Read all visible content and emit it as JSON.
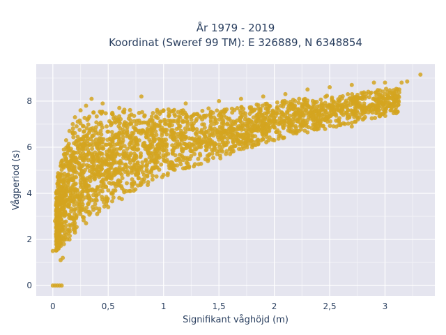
{
  "chart_data": {
    "type": "scatter",
    "title_line1": "År 1979 - 2019",
    "title_line2": "Koordinat (Sweref 99 TM): E 326889, N 6348854",
    "xlabel": "Signifikant våghöjd (m)",
    "ylabel": "Vågperiod (s)",
    "xlim": [
      -0.15,
      3.45
    ],
    "ylim": [
      -0.45,
      9.6
    ],
    "xticks": [
      0,
      0.5,
      1,
      1.5,
      2,
      2.5,
      3
    ],
    "xtick_labels": [
      "0",
      "0,5",
      "1",
      "1,5",
      "2",
      "2,5",
      "3"
    ],
    "yticks": [
      0,
      2,
      4,
      6,
      8
    ],
    "ytick_labels": [
      "0",
      "2",
      "4",
      "6",
      "8"
    ],
    "grid": true,
    "marker_color": "#d4a420",
    "plot_bg": "#e5e5ef",
    "points": [
      [
        0.0,
        0.0
      ],
      [
        0.02,
        0.0
      ],
      [
        0.04,
        0.0
      ],
      [
        0.06,
        0.0
      ],
      [
        0.08,
        0.0
      ],
      [
        0.0,
        1.5
      ],
      [
        0.02,
        2.8
      ],
      [
        0.05,
        1.6
      ],
      [
        0.07,
        1.1
      ],
      [
        0.09,
        1.2
      ],
      [
        0.05,
        3.5
      ],
      [
        0.06,
        4.5
      ],
      [
        0.08,
        5.4
      ],
      [
        0.1,
        5.9
      ],
      [
        0.12,
        6.3
      ],
      [
        0.15,
        6.7
      ],
      [
        0.18,
        7.0
      ],
      [
        0.2,
        7.3
      ],
      [
        0.25,
        7.6
      ],
      [
        0.3,
        7.8
      ],
      [
        0.35,
        8.1
      ],
      [
        0.45,
        7.9
      ],
      [
        0.6,
        7.7
      ],
      [
        0.8,
        8.2
      ],
      [
        1.0,
        7.6
      ],
      [
        1.2,
        7.9
      ],
      [
        1.5,
        8.0
      ],
      [
        1.7,
        8.1
      ],
      [
        1.9,
        8.2
      ],
      [
        2.1,
        8.3
      ],
      [
        2.3,
        8.5
      ],
      [
        2.5,
        8.6
      ],
      [
        2.7,
        8.7
      ],
      [
        2.9,
        8.8
      ],
      [
        3.0,
        8.8
      ],
      [
        3.15,
        8.8
      ],
      [
        3.2,
        8.85
      ],
      [
        3.32,
        9.15
      ],
      [
        0.1,
        1.8
      ],
      [
        0.15,
        2.0
      ],
      [
        0.2,
        2.3
      ],
      [
        0.3,
        2.7
      ],
      [
        0.4,
        3.1
      ],
      [
        0.5,
        3.4
      ],
      [
        0.6,
        3.8
      ],
      [
        0.7,
        4.1
      ],
      [
        0.8,
        4.4
      ],
      [
        0.9,
        4.6
      ],
      [
        1.0,
        4.8
      ],
      [
        1.2,
        5.1
      ],
      [
        1.4,
        5.4
      ],
      [
        1.6,
        5.7
      ],
      [
        1.8,
        6.0
      ],
      [
        2.0,
        6.3
      ],
      [
        2.2,
        6.6
      ],
      [
        2.4,
        6.8
      ],
      [
        2.6,
        7.0
      ],
      [
        2.8,
        7.2
      ],
      [
        2.7,
        6.9
      ],
      [
        3.05,
        7.6
      ]
    ]
  }
}
